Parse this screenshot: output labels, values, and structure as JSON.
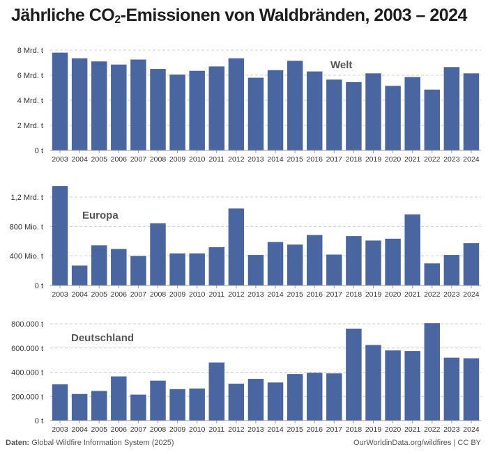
{
  "title": {
    "prefix": "Jährliche CO",
    "sub": "2",
    "suffix": "-Emissionen von Waldbränden, 2003 – 2024"
  },
  "footer": {
    "source_label": "Daten:",
    "source_text": "Global Wildfire Information System (2025)",
    "credit": "OurWorldinData.org/wildfires | CC BY"
  },
  "colors": {
    "bar": "#4a66a1",
    "grid": "#cccccc",
    "axis": "#999999"
  },
  "chart_data": [
    {
      "type": "bar",
      "label": "Welt",
      "categories": [
        "2003",
        "2004",
        "2005",
        "2006",
        "2007",
        "2008",
        "2009",
        "2010",
        "2011",
        "2012",
        "2013",
        "2014",
        "2015",
        "2016",
        "2017",
        "2018",
        "2019",
        "2020",
        "2021",
        "2022",
        "2023",
        "2024"
      ],
      "values": [
        7.8,
        7.35,
        7.1,
        6.85,
        7.25,
        6.5,
        6.05,
        6.35,
        6.7,
        7.35,
        5.8,
        6.4,
        7.15,
        6.3,
        5.65,
        5.45,
        6.15,
        5.15,
        5.85,
        4.85,
        6.65,
        6.15
      ],
      "unit": "Mrd. t",
      "ylim": [
        0,
        8
      ],
      "yticks": [
        0,
        2,
        4,
        6,
        8
      ],
      "ytick_labels": [
        "0 t",
        "2 Mrd. t",
        "4 Mrd. t",
        "6 Mrd. t",
        "8 Mrd. t"
      ],
      "label_position": "top-right",
      "grid": true
    },
    {
      "type": "bar",
      "label": "Europa",
      "categories": [
        "2003",
        "2004",
        "2005",
        "2006",
        "2007",
        "2008",
        "2009",
        "2010",
        "2011",
        "2012",
        "2013",
        "2014",
        "2015",
        "2016",
        "2017",
        "2018",
        "2019",
        "2020",
        "2021",
        "2022",
        "2023",
        "2024"
      ],
      "values": [
        1350,
        270,
        545,
        495,
        400,
        845,
        435,
        435,
        520,
        1045,
        415,
        590,
        555,
        685,
        420,
        670,
        610,
        635,
        965,
        300,
        415,
        575
      ],
      "unit": "Mio. t",
      "ylim": [
        0,
        1200
      ],
      "yticks": [
        0,
        400,
        800,
        1200
      ],
      "ytick_labels": [
        "0 t",
        "400 Mio. t",
        "800 Mio. t",
        "1,2 Mrd. t"
      ],
      "label_position": "top-left",
      "grid": true
    },
    {
      "type": "bar",
      "label": "Deutschland",
      "categories": [
        "2003",
        "2004",
        "2005",
        "2006",
        "2007",
        "2008",
        "2009",
        "2010",
        "2011",
        "2012",
        "2013",
        "2014",
        "2015",
        "2016",
        "2017",
        "2018",
        "2019",
        "2020",
        "2021",
        "2022",
        "2023",
        "2024"
      ],
      "values": [
        300000,
        220000,
        245000,
        365000,
        215000,
        330000,
        260000,
        265000,
        480000,
        305000,
        345000,
        315000,
        385000,
        395000,
        390000,
        760000,
        625000,
        580000,
        575000,
        805000,
        520000,
        515000
      ],
      "unit": "t",
      "ylim": [
        0,
        800000
      ],
      "yticks": [
        0,
        200000,
        400000,
        600000,
        800000
      ],
      "ytick_labels": [
        "0 t",
        "200.000 t",
        "400.000 t",
        "600.000 t",
        "800.000 t"
      ],
      "label_position": "top-left",
      "grid": true
    }
  ]
}
